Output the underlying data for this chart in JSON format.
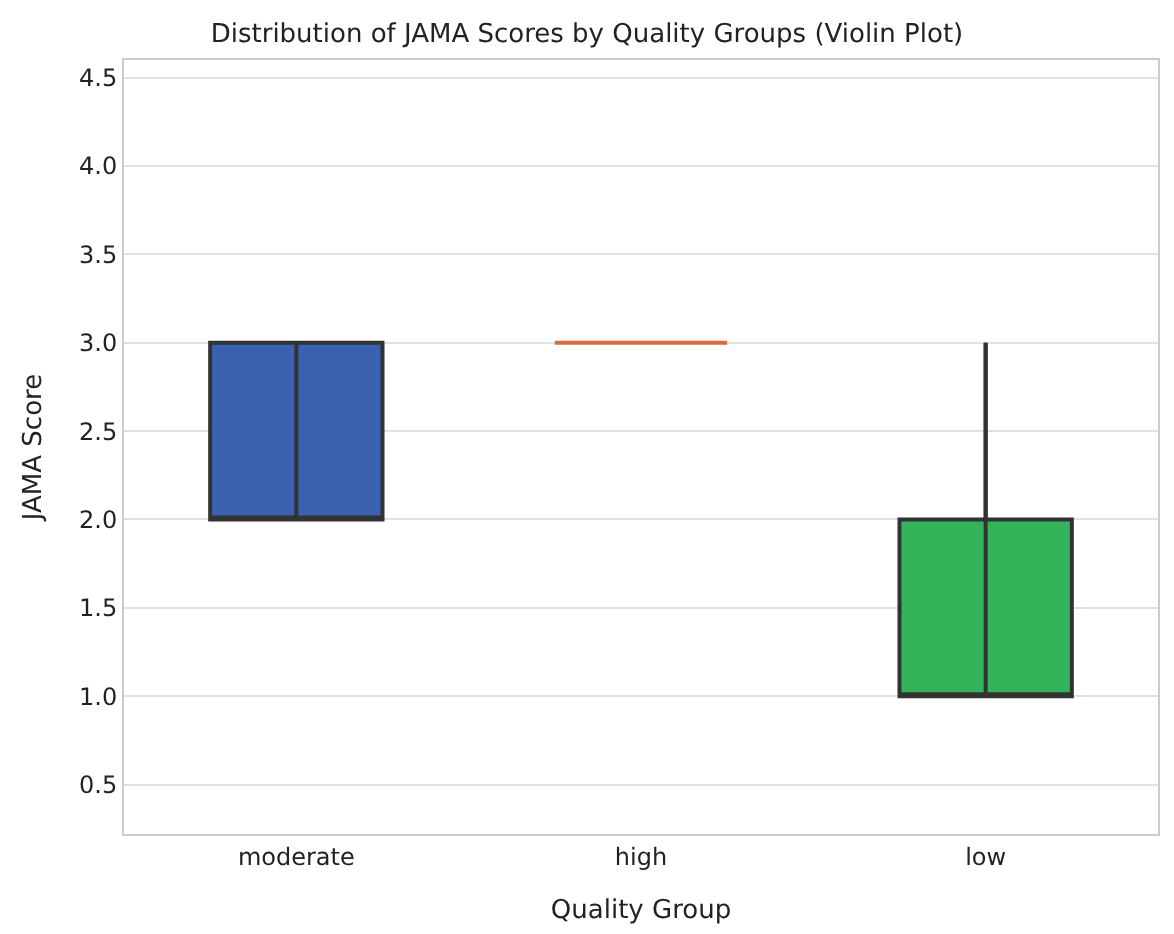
{
  "chart_data": {
    "type": "box",
    "title": "Distribution of JAMA Scores by Quality Groups (Violin Plot)",
    "xlabel": "Quality Group",
    "ylabel": "JAMA Score",
    "categories": [
      "moderate",
      "high",
      "low"
    ],
    "colors": [
      "#3a62b0",
      "#d96c3e",
      "#35b35a"
    ],
    "boxes": [
      {
        "low": 2,
        "q1": 2,
        "median": 2,
        "q3": 3,
        "high": 3
      },
      {
        "low": 3,
        "q1": 3,
        "median": 3,
        "q3": 3,
        "high": 3
      },
      {
        "low": 1,
        "q1": 1,
        "median": 1,
        "q3": 2,
        "high": 3
      }
    ],
    "ylim": [
      0.22,
      4.6
    ],
    "yticks": [
      0.5,
      {
        "value": 1,
        "label": "1.0"
      },
      1.5,
      {
        "value": 2,
        "label": "2.0"
      },
      2.5,
      {
        "value": 3,
        "label": "3.0"
      },
      3.5,
      {
        "value": 4,
        "label": "4.0"
      },
      4.5
    ],
    "grid": "y",
    "legend": false
  }
}
